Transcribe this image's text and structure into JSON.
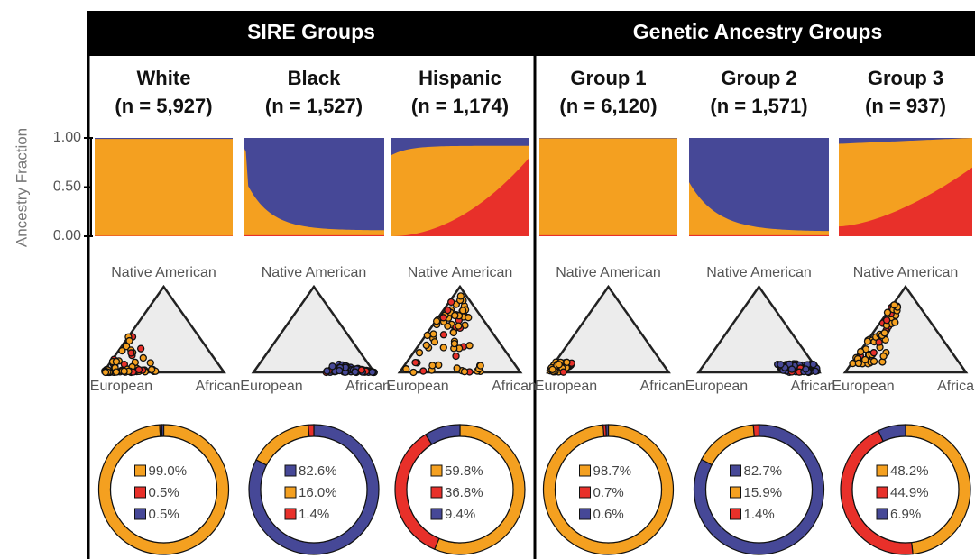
{
  "header": {
    "left": "SIRE Groups",
    "right": "Genetic Ancestry Groups"
  },
  "axis": {
    "label": "Ancestry Fraction",
    "ylim": [
      0,
      1
    ],
    "yticks": [
      {
        "value": 0,
        "label": "0.00"
      },
      {
        "value": 0.5,
        "label": "0.50"
      },
      {
        "value": 1,
        "label": "1.00"
      }
    ]
  },
  "ternary": {
    "top": "Native American",
    "left": "European",
    "right": "African"
  },
  "chart_data": [
    {
      "type": "pie",
      "title": "White",
      "subtitle": "(n = 5,927)",
      "values": [
        99.0,
        0.5,
        0.5
      ],
      "value_labels": [
        "99.0%",
        "0.5%",
        "0.5%"
      ],
      "colors": [
        "#f4a020",
        "#e8302a",
        "#464897"
      ]
    },
    {
      "type": "pie",
      "title": "Black",
      "subtitle": "(n = 1,527)",
      "values": [
        82.6,
        16.0,
        1.4
      ],
      "value_labels": [
        "82.6%",
        "16.0%",
        "1.4%"
      ],
      "colors": [
        "#464897",
        "#f4a020",
        "#e8302a"
      ]
    },
    {
      "type": "pie",
      "title": "Hispanic",
      "subtitle": "(n = 1,174)",
      "values": [
        59.8,
        36.8,
        9.4
      ],
      "value_labels": [
        "59.8%",
        "36.8%",
        "9.4%"
      ],
      "colors": [
        "#f4a020",
        "#e8302a",
        "#464897"
      ]
    },
    {
      "type": "pie",
      "title": "Group 1",
      "subtitle": "(n = 6,120)",
      "values": [
        98.7,
        0.7,
        0.6
      ],
      "value_labels": [
        "98.7%",
        "0.7%",
        "0.6%"
      ],
      "colors": [
        "#f4a020",
        "#e8302a",
        "#464897"
      ]
    },
    {
      "type": "pie",
      "title": "Group 2",
      "subtitle": "(n = 1,571)",
      "values": [
        82.7,
        15.9,
        1.4
      ],
      "value_labels": [
        "82.7%",
        "15.9%",
        "1.4%"
      ],
      "colors": [
        "#464897",
        "#f4a020",
        "#e8302a"
      ]
    },
    {
      "type": "pie",
      "title": "Group 3",
      "subtitle": "(n = 937)",
      "values": [
        48.2,
        44.9,
        6.9
      ],
      "value_labels": [
        "48.2%",
        "44.9%",
        "6.9%"
      ],
      "colors": [
        "#f4a020",
        "#e8302a",
        "#464897"
      ]
    }
  ]
}
